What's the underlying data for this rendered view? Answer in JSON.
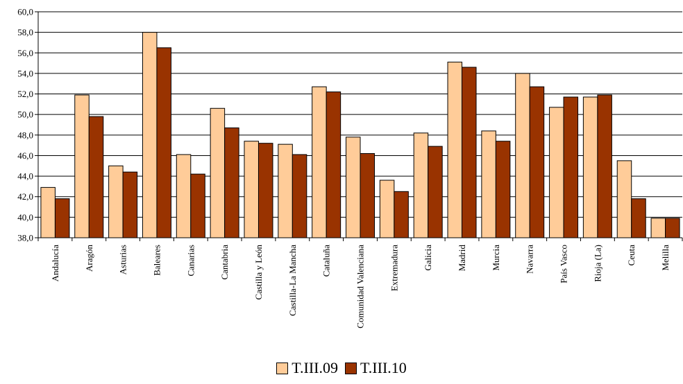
{
  "chart_data": {
    "type": "bar",
    "categories": [
      "Andalucía",
      "Aragón",
      "Asturias",
      "Baleares",
      "Canarias",
      "Cantabria",
      "Castilla y León",
      "Castilla-La Mancha",
      "Cataluña",
      "Comunidad Valenciana",
      "Extremadura",
      "Galicia",
      "Madrid",
      "Murcia",
      "Navarra",
      "País Vasco",
      "Rioja (La)",
      "Ceuta",
      "Melilla"
    ],
    "series": [
      {
        "name": "T.III.09",
        "color": "#FFCC99",
        "values": [
          42.9,
          51.9,
          45.0,
          58.0,
          46.1,
          50.6,
          47.4,
          47.1,
          52.7,
          47.8,
          43.6,
          48.2,
          55.1,
          48.4,
          54.0,
          50.7,
          51.7,
          45.5,
          39.9
        ]
      },
      {
        "name": "T.III.10",
        "color": "#993300",
        "values": [
          41.8,
          49.8,
          44.4,
          56.5,
          44.2,
          48.7,
          47.2,
          46.1,
          52.2,
          46.2,
          42.5,
          46.9,
          54.6,
          47.4,
          52.7,
          51.7,
          51.9,
          41.8,
          39.9
        ]
      }
    ],
    "y_ticks": [
      "38,0",
      "40,0",
      "42,0",
      "44,0",
      "46,0",
      "48,0",
      "50,0",
      "52,0",
      "54,0",
      "56,0",
      "58,0",
      "60,0"
    ],
    "ylim": [
      38,
      60
    ],
    "grid": true,
    "legend_position": "bottom"
  }
}
